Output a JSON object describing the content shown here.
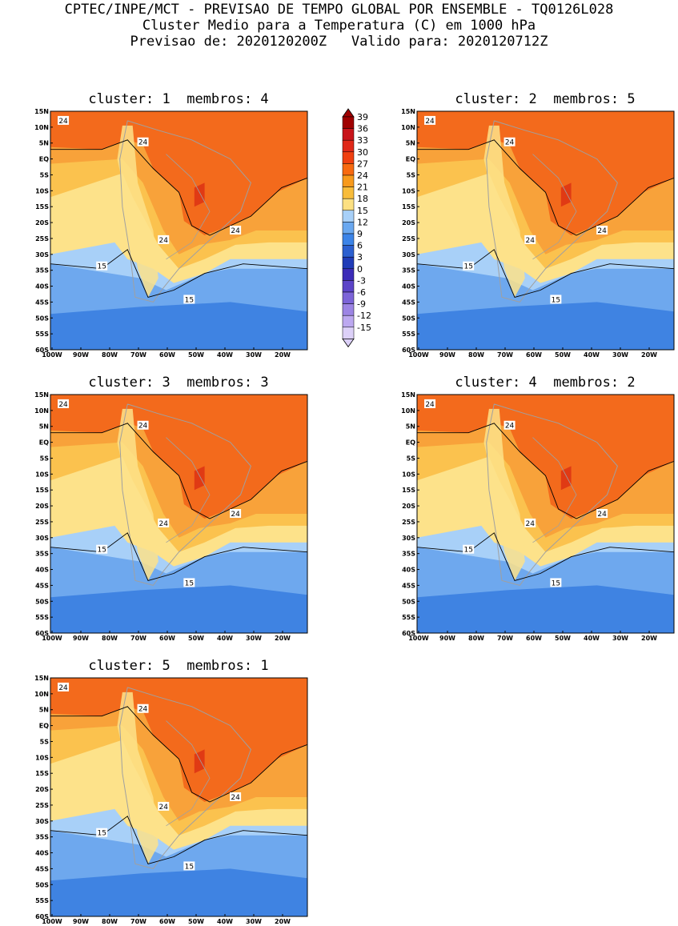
{
  "header": {
    "line1": "CPTEC/INPE/MCT - PREVISAO DE TEMPO GLOBAL POR ENSEMBLE - TQ0126L028",
    "line2": "Cluster Medio para a Temperatura (C) em 1000 hPa",
    "line3": "Previsao de: 2020120200Z   Valido para: 2020120712Z"
  },
  "panels": [
    {
      "title": "cluster: 1  membros: 4"
    },
    {
      "title": "cluster: 2  membros: 5"
    },
    {
      "title": "cluster: 3  membros: 3"
    },
    {
      "title": "cluster: 4  membros: 2"
    },
    {
      "title": "cluster: 5  membros: 1"
    }
  ],
  "axes": {
    "lat_labels": [
      "15N",
      "10N",
      "5N",
      "EQ",
      "5S",
      "10S",
      "15S",
      "20S",
      "25S",
      "30S",
      "35S",
      "40S",
      "45S",
      "50S",
      "55S",
      "60S"
    ],
    "lon_labels": [
      "100W",
      "90W",
      "80W",
      "70W",
      "60W",
      "50W",
      "40W",
      "30W",
      "20W"
    ]
  },
  "contour_labels": {
    "hot": "24",
    "cool": "15"
  },
  "colorbar": {
    "levels": [
      "39",
      "36",
      "33",
      "30",
      "27",
      "24",
      "21",
      "18",
      "15",
      "12",
      "9",
      "6",
      "3",
      "0",
      "-3",
      "-6",
      "-9",
      "-12",
      "-15"
    ],
    "colors": [
      "#a00000",
      "#c8141a",
      "#e02818",
      "#f04010",
      "#f86a10",
      "#f89a1c",
      "#f8bc3a",
      "#fce082",
      "#a8d0f8",
      "#6aa8f0",
      "#3c84e8",
      "#2c60d0",
      "#203cb8",
      "#3c2cb8",
      "#5c44c8",
      "#7c64d8",
      "#9c84e4",
      "#bca8f0",
      "#dcd0f8"
    ]
  },
  "palette": {
    "t27": "#f36a1c",
    "t24": "#f8a23a",
    "t21": "#fbc24e",
    "t18": "#fde28a",
    "t15": "#a8d0f8",
    "t12": "#6ea8ee",
    "t9": "#3f83e2",
    "t6": "#2e63d0",
    "t30": "#e03a14",
    "land_border": "#a0a0a0"
  }
}
